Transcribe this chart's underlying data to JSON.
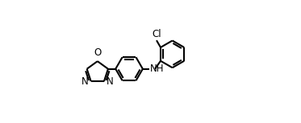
{
  "bg_color": "#ffffff",
  "line_color": "#000000",
  "text_color": "#000000",
  "line_width": 1.5,
  "font_size": 8.5,
  "figsize": [
    3.73,
    1.53
  ],
  "dpi": 100,
  "xlim": [
    0.0,
    1.0
  ],
  "ylim": [
    0.05,
    0.95
  ]
}
